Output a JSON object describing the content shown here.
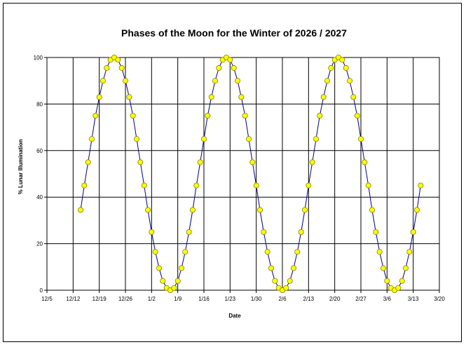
{
  "chart_data": {
    "type": "line",
    "title": "Phases of the Moon for the Winter of 2026 / 2027",
    "xlabel": "Date",
    "ylabel": "% Lunar Illumination",
    "ylim": [
      0,
      100
    ],
    "yticks": [
      0,
      20,
      40,
      60,
      80,
      100
    ],
    "xlim": [
      "2026-12-05",
      "2027-03-20"
    ],
    "xticks": [
      "12/5",
      "12/12",
      "12/19",
      "12/26",
      "1/2",
      "1/9",
      "1/16",
      "1/23",
      "1/30",
      "2/6",
      "2/13",
      "2/20",
      "2/27",
      "3/6",
      "3/13",
      "3/20"
    ],
    "grid": true,
    "legend": "none",
    "line_color": "#00007f",
    "marker_color": "#ffff00",
    "marker_edge": "#808000",
    "series": [
      {
        "x": [
          "2026-12-14",
          "2026-12-15",
          "2026-12-16",
          "2026-12-17",
          "2026-12-18",
          "2026-12-19",
          "2026-12-20",
          "2026-12-21",
          "2026-12-22",
          "2026-12-23",
          "2026-12-24",
          "2026-12-25",
          "2026-12-26",
          "2026-12-27",
          "2026-12-28",
          "2026-12-29",
          "2026-12-30",
          "2026-12-31",
          "2027-01-01",
          "2027-01-02",
          "2027-01-03",
          "2027-01-04",
          "2027-01-05",
          "2027-01-06",
          "2027-01-07",
          "2027-01-08",
          "2027-01-09",
          "2027-01-10",
          "2027-01-11",
          "2027-01-12",
          "2027-01-13",
          "2027-01-14",
          "2027-01-15",
          "2027-01-16",
          "2027-01-17",
          "2027-01-18",
          "2027-01-19",
          "2027-01-20",
          "2027-01-21",
          "2027-01-22",
          "2027-01-23",
          "2027-01-24",
          "2027-01-25",
          "2027-01-26",
          "2027-01-27",
          "2027-01-28",
          "2027-01-29",
          "2027-01-30",
          "2027-01-31",
          "2027-02-01",
          "2027-02-02",
          "2027-02-03",
          "2027-02-04",
          "2027-02-05",
          "2027-02-06",
          "2027-02-07",
          "2027-02-08",
          "2027-02-09",
          "2027-02-10",
          "2027-02-11",
          "2027-02-12",
          "2027-02-13",
          "2027-02-14",
          "2027-02-15",
          "2027-02-16",
          "2027-02-17",
          "2027-02-18",
          "2027-02-19",
          "2027-02-20",
          "2027-02-21",
          "2027-02-22",
          "2027-02-23",
          "2027-02-24",
          "2027-02-25",
          "2027-02-26",
          "2027-02-27",
          "2027-02-28",
          "2027-03-01",
          "2027-03-02",
          "2027-03-03",
          "2027-03-04",
          "2027-03-05",
          "2027-03-06",
          "2027-03-07",
          "2027-03-08",
          "2027-03-09",
          "2027-03-10",
          "2027-03-11",
          "2027-03-12",
          "2027-03-13",
          "2027-03-14",
          "2027-03-15"
        ],
        "y": [
          34.5,
          45,
          55,
          65,
          75,
          83,
          90,
          95.5,
          99,
          100,
          99,
          95.5,
          90,
          83,
          75,
          65,
          55,
          45,
          34.5,
          25,
          16.5,
          9.5,
          4,
          1,
          0,
          1,
          4,
          9.5,
          16.5,
          25,
          34.5,
          45,
          55,
          65,
          75,
          83,
          90,
          95.5,
          99,
          100,
          99,
          95.5,
          90,
          83,
          75,
          65,
          55,
          45,
          34.5,
          25,
          16.5,
          9.5,
          4,
          1,
          0,
          1,
          4,
          9.5,
          16.5,
          25,
          34.5,
          45,
          55,
          65,
          75,
          83,
          90,
          95.5,
          99,
          100,
          99,
          95.5,
          90,
          83,
          75,
          65,
          55,
          45,
          34.5,
          25,
          16.5,
          9.5,
          4,
          1,
          0,
          1,
          4,
          9.5,
          16.5,
          25,
          34.5,
          45
        ]
      }
    ]
  }
}
